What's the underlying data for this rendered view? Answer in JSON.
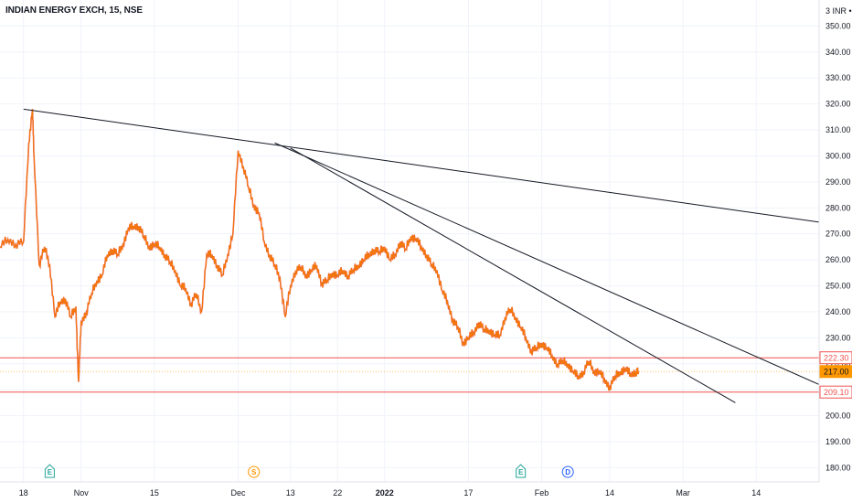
{
  "title": "INDIAN ENERGY EXCH, 15, NSE",
  "currency": "INR",
  "scale_indicator": "3",
  "colors": {
    "candle": "#f57c00",
    "candle_down": "#e53935",
    "price_line": "#ef5350",
    "last_price": "#ff9800",
    "trendline": "#131722",
    "earnings_badge": "#26a69a",
    "split_badge": "#ff9800",
    "dividend_badge": "#2962ff"
  },
  "chart_data": {
    "type": "line",
    "title": "INDIAN ENERGY EXCH, 15, NSE",
    "xlabel": "",
    "ylabel": "INR",
    "x_ticks": [
      {
        "label": "18",
        "x": 0
      },
      {
        "label": "Nov",
        "x": 11
      },
      {
        "label": "15",
        "x": 25
      },
      {
        "label": "Dec",
        "x": 41
      },
      {
        "label": "13",
        "x": 51
      },
      {
        "label": "22",
        "x": 60
      },
      {
        "label": "2022",
        "x": 69,
        "bold": true
      },
      {
        "label": "17",
        "x": 85
      },
      {
        "label": "Feb",
        "x": 99
      },
      {
        "label": "14",
        "x": 112
      },
      {
        "label": "Mar",
        "x": 126
      },
      {
        "label": "14",
        "x": 140
      }
    ],
    "y_ticks": [
      180,
      190,
      200,
      210,
      220,
      230,
      240,
      250,
      260,
      270,
      280,
      290,
      300,
      310,
      320,
      330,
      340,
      350
    ],
    "ylim": [
      174.5,
      360
    ],
    "xlim": [
      -4.5,
      152
    ],
    "series": [
      {
        "x": [
          -4.5,
          -3,
          -1.5,
          0,
          1,
          1.7,
          2,
          3,
          4,
          5,
          6,
          7,
          8,
          9,
          10,
          10.5,
          11,
          12,
          13,
          14,
          15,
          16,
          17,
          18,
          19,
          20,
          21,
          22,
          23,
          24,
          25,
          26,
          27,
          28,
          29,
          30,
          31,
          32,
          33,
          34,
          35,
          36,
          37,
          38,
          39,
          40,
          41,
          42,
          43,
          44,
          45,
          46,
          47,
          48,
          49,
          50,
          51,
          52,
          53,
          54,
          55,
          56,
          57,
          58,
          59,
          60,
          61,
          62,
          63,
          64,
          65,
          66,
          67,
          68,
          69,
          70,
          71,
          72,
          73,
          74,
          75,
          76,
          77,
          78,
          79,
          80,
          81,
          82,
          83,
          84,
          85,
          86,
          87,
          88,
          89,
          90,
          91,
          92,
          93,
          94,
          95,
          96,
          97,
          98,
          99,
          100,
          101,
          102,
          103,
          104,
          105,
          106,
          107,
          108,
          109,
          110,
          111,
          112,
          113,
          114,
          115,
          116,
          117,
          117.5
        ],
        "y": [
          265,
          268,
          266,
          267,
          305,
          318,
          300,
          258,
          265,
          258,
          238,
          244,
          245,
          238,
          242,
          213,
          236,
          240,
          247,
          252,
          254,
          262,
          264,
          262,
          266,
          272,
          273,
          273,
          269,
          265,
          266,
          265,
          262,
          259,
          256,
          250,
          249,
          243,
          247,
          240,
          262,
          262,
          258,
          254,
          262,
          270,
          302,
          296,
          288,
          281,
          278,
          267,
          262,
          258,
          253,
          238,
          250,
          256,
          257,
          254,
          256,
          258,
          251,
          252,
          255,
          254,
          256,
          254,
          256,
          258,
          260,
          262,
          264,
          263,
          265,
          260,
          262,
          267,
          264,
          269,
          268,
          265,
          262,
          258,
          256,
          248,
          244,
          237,
          234,
          228,
          230,
          232,
          236,
          233,
          233,
          231,
          231,
          238,
          241,
          238,
          234,
          230,
          225,
          226,
          228,
          226,
          223,
          220,
          221,
          220,
          217,
          215,
          217,
          221,
          217,
          217,
          214,
          211,
          215,
          217,
          218,
          216,
          217,
          217
        ]
      }
    ],
    "annotations": {
      "price_lines": [
        {
          "label": "222.30",
          "value": 222.3,
          "color": "#ef5350"
        },
        {
          "label": "209.10",
          "value": 209.1,
          "color": "#ef5350"
        },
        {
          "label": "217.00",
          "value": 217.0,
          "color": "#ff9800",
          "last_price": true
        }
      ],
      "trendlines": [
        {
          "x1": 0,
          "y1": 318,
          "x2": 152,
          "y2": 274.5
        },
        {
          "x1": 48,
          "y1": 305,
          "x2": 152,
          "y2": 212
        },
        {
          "x1": 51,
          "y1": 303,
          "x2": 136,
          "y2": 205
        }
      ],
      "markers": [
        {
          "letter": "E",
          "x": 5,
          "color": "#26a69a"
        },
        {
          "letter": "S",
          "x": 44,
          "color": "#ff9800"
        },
        {
          "letter": "E",
          "x": 95,
          "color": "#26a69a"
        },
        {
          "letter": "D",
          "x": 104,
          "color": "#2962ff"
        }
      ]
    },
    "grid": true,
    "legend": "none"
  }
}
